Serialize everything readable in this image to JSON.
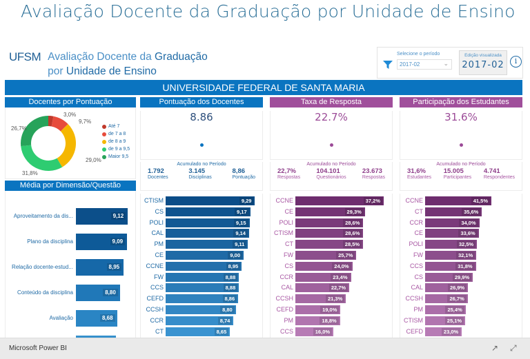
{
  "page_title": "Avaliação Docente da Graduação por Unidade de Ensino",
  "header": {
    "logo": "UFSM",
    "title_line1_a": "Avaliação Docente da ",
    "title_line1_b": "Graduação",
    "title_line2_a": "por ",
    "title_line2_b": "Unidade de Ensino"
  },
  "filter": {
    "label": "Selecione o período",
    "selected": "2017-02",
    "edition_label": "Edição visualizada",
    "edition_value": "2017-02",
    "info_icon": "i"
  },
  "banner": "UNIVERSIDADE FEDERAL DE SANTA MARIA",
  "colors": {
    "blue": "#0a74c0",
    "purple": "#a04f9b",
    "donut": [
      "#c0392b",
      "#e74c3c",
      "#f5b700",
      "#2ecc71",
      "#27a35a"
    ]
  },
  "donut": {
    "title": "Docentes por Pontuação",
    "slices": [
      {
        "label": "Até 7",
        "value": 3.0,
        "text": "3,0%"
      },
      {
        "label": "de 7 a 8",
        "value": 9.7,
        "text": "9,7%"
      },
      {
        "label": "de 8 a 9",
        "value": 29.0,
        "text": "29,0%"
      },
      {
        "label": "de 9 a 9,5",
        "value": 31.8,
        "text": "31,8%"
      },
      {
        "label": "Maior 9,5",
        "value": 26.7,
        "text": "26,7%"
      }
    ]
  },
  "dimensions": {
    "title": "Média por Dimensão/Questão",
    "items": [
      {
        "label": "Aproveitamento da dis...",
        "value": 9.12,
        "text": "9,12"
      },
      {
        "label": "Plano da disciplina",
        "value": 9.09,
        "text": "9,09"
      },
      {
        "label": "Relação docente-estud...",
        "value": 8.95,
        "text": "8,95"
      },
      {
        "label": "Conteúdo da disciplina",
        "value": 8.8,
        "text": "8,80"
      },
      {
        "label": "Avaliação",
        "value": 8.68,
        "text": "8,68"
      },
      {
        "label": "Metodologia",
        "value": 8.63,
        "text": "8,63"
      }
    ]
  },
  "pontuacao": {
    "title": "Pontuação dos Docentes",
    "big": "8.86",
    "acc_title": "Acumulado no Período",
    "stats": [
      {
        "n": "1.792",
        "l": "Docentes"
      },
      {
        "n": "3.145",
        "l": "Disciplinas"
      },
      {
        "n": "8,86",
        "l": "Pontuação"
      }
    ],
    "bars": [
      {
        "label": "CTISM",
        "value": 9.29,
        "text": "9,29"
      },
      {
        "label": "CS",
        "value": 9.17,
        "text": "9,17"
      },
      {
        "label": "POLI",
        "value": 9.15,
        "text": "9,15"
      },
      {
        "label": "CAL",
        "value": 9.14,
        "text": "9,14"
      },
      {
        "label": "PM",
        "value": 9.11,
        "text": "9,11"
      },
      {
        "label": "CE",
        "value": 9.0,
        "text": "9,00"
      },
      {
        "label": "CCNE",
        "value": 8.95,
        "text": "8,95"
      },
      {
        "label": "FW",
        "value": 8.88,
        "text": "8,88"
      },
      {
        "label": "CCS",
        "value": 8.88,
        "text": "8,88"
      },
      {
        "label": "CEFD",
        "value": 8.86,
        "text": "8,86"
      },
      {
        "label": "CCSH",
        "value": 8.8,
        "text": "8,80"
      },
      {
        "label": "CCR",
        "value": 8.74,
        "text": "8,74"
      },
      {
        "label": "CT",
        "value": 8.65,
        "text": "8,65"
      }
    ]
  },
  "taxa": {
    "title": "Taxa de Resposta",
    "big": "22.7%",
    "acc_title": "Acumulado no Período",
    "stats": [
      {
        "n": "22,7%",
        "l": "Respostas"
      },
      {
        "n": "104.101",
        "l": "Questionários"
      },
      {
        "n": "23.673",
        "l": "Respostas"
      }
    ],
    "bars": [
      {
        "label": "CCNE",
        "value": 37.2,
        "text": "37,2%"
      },
      {
        "label": "CE",
        "value": 29.3,
        "text": "29,3%"
      },
      {
        "label": "POLI",
        "value": 28.6,
        "text": "28,6%"
      },
      {
        "label": "CTISM",
        "value": 28.6,
        "text": "28,6%"
      },
      {
        "label": "CT",
        "value": 28.5,
        "text": "28,5%"
      },
      {
        "label": "FW",
        "value": 25.7,
        "text": "25,7%"
      },
      {
        "label": "CS",
        "value": 24.0,
        "text": "24,0%"
      },
      {
        "label": "CCR",
        "value": 23.4,
        "text": "23,4%"
      },
      {
        "label": "CAL",
        "value": 22.7,
        "text": "22,7%"
      },
      {
        "label": "CCSH",
        "value": 21.3,
        "text": "21,3%"
      },
      {
        "label": "CEFD",
        "value": 19.0,
        "text": "19,0%"
      },
      {
        "label": "PM",
        "value": 18.8,
        "text": "18,8%"
      },
      {
        "label": "CCS",
        "value": 16.0,
        "text": "16,0%"
      }
    ]
  },
  "participacao": {
    "title": "Participação dos Estudantes",
    "big": "31.6%",
    "acc_title": "Acumulado no Período",
    "stats": [
      {
        "n": "31,6%",
        "l": "Estudantes"
      },
      {
        "n": "15.005",
        "l": "Participantes"
      },
      {
        "n": "4.741",
        "l": "Respondentes"
      }
    ],
    "bars": [
      {
        "label": "CCNE",
        "value": 41.5,
        "text": "41,5%"
      },
      {
        "label": "CT",
        "value": 35.6,
        "text": "35,6%"
      },
      {
        "label": "CCR",
        "value": 34.0,
        "text": "34,0%"
      },
      {
        "label": "CE",
        "value": 33.6,
        "text": "33,6%"
      },
      {
        "label": "POLI",
        "value": 32.5,
        "text": "32,5%"
      },
      {
        "label": "FW",
        "value": 32.1,
        "text": "32,1%"
      },
      {
        "label": "CCS",
        "value": 31.8,
        "text": "31,8%"
      },
      {
        "label": "CS",
        "value": 29.9,
        "text": "29,9%"
      },
      {
        "label": "CAL",
        "value": 26.9,
        "text": "26,9%"
      },
      {
        "label": "CCSH",
        "value": 26.7,
        "text": "26,7%"
      },
      {
        "label": "PM",
        "value": 25.4,
        "text": "25,4%"
      },
      {
        "label": "CTISM",
        "value": 25.1,
        "text": "25,1%"
      },
      {
        "label": "CEFD",
        "value": 23.0,
        "text": "23,0%"
      }
    ]
  },
  "footer": {
    "brand": "Microsoft Power BI",
    "share_icon": "share-icon",
    "fullscreen_icon": "fullscreen-icon"
  }
}
